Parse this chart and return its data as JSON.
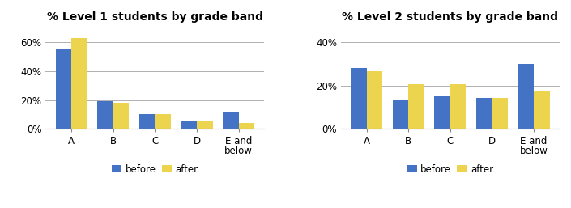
{
  "chart1": {
    "title": "% Level 1 students by grade band",
    "categories": [
      "A",
      "B",
      "C",
      "D",
      "E and\nbelow"
    ],
    "before": [
      0.55,
      0.19,
      0.1,
      0.06,
      0.12
    ],
    "after": [
      0.63,
      0.18,
      0.1,
      0.055,
      0.04
    ],
    "ylim": [
      0,
      0.72
    ],
    "yticks": [
      0,
      0.2,
      0.4,
      0.6
    ],
    "yticklabels": [
      "0%",
      "20%",
      "40%",
      "60%"
    ]
  },
  "chart2": {
    "title": "% Level 2 students by grade band",
    "categories": [
      "A",
      "B",
      "C",
      "D",
      "E and\nbelow"
    ],
    "before": [
      0.28,
      0.135,
      0.155,
      0.145,
      0.3
    ],
    "after": [
      0.265,
      0.205,
      0.205,
      0.145,
      0.175
    ],
    "ylim": [
      0,
      0.48
    ],
    "yticks": [
      0,
      0.2,
      0.4
    ],
    "yticklabels": [
      "0%",
      "20%",
      "40%"
    ]
  },
  "bar_color_before": "#4472C4",
  "bar_color_after": "#EDD44E",
  "legend_labels": [
    "before",
    "after"
  ],
  "bar_width": 0.38,
  "title_fontsize": 10,
  "tick_fontsize": 8.5,
  "legend_fontsize": 8.5,
  "background_color": "#ffffff",
  "grid_color": "#b0b0b0"
}
